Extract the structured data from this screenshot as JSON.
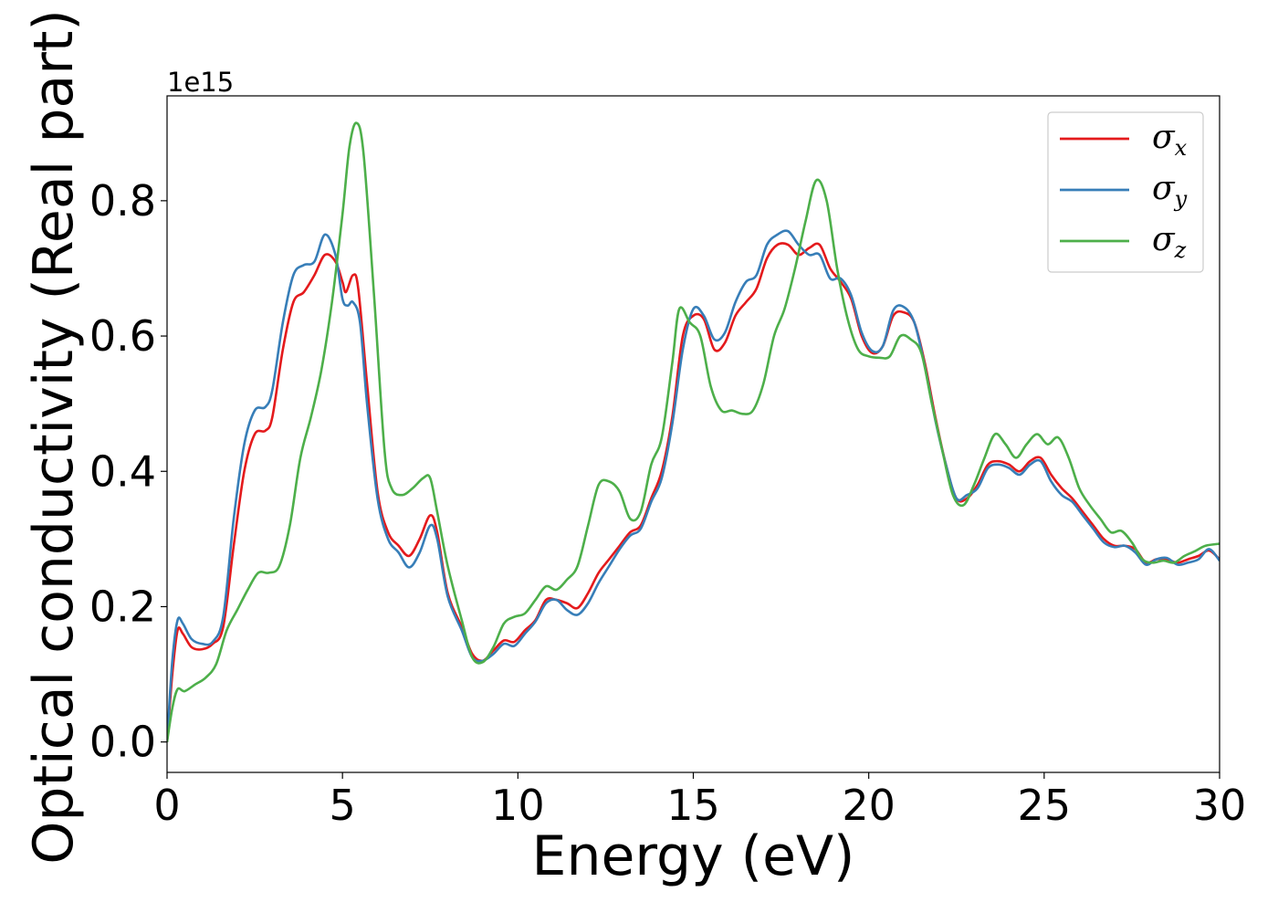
{
  "chart_data": {
    "type": "line",
    "title": "",
    "xlabel": "Energy (eV)",
    "ylabel": "Optical conductivity (Real part)",
    "y_offset_label": "1e15",
    "xlim": [
      0,
      30
    ],
    "ylim": [
      -0.045,
      0.955
    ],
    "xticks": [
      0,
      5,
      10,
      15,
      20,
      25,
      30
    ],
    "xtick_labels": [
      "0",
      "5",
      "10",
      "15",
      "20",
      "25",
      "30"
    ],
    "yticks": [
      0.0,
      0.2,
      0.4,
      0.6,
      0.8
    ],
    "ytick_labels": [
      "0.0",
      "0.2",
      "0.4",
      "0.6",
      "0.8"
    ],
    "grid": false,
    "legend": {
      "placement": "top-right"
    },
    "series": [
      {
        "name": "σx",
        "symbol": "σ",
        "subscript": "x",
        "color": "#e41a1c",
        "points": [
          [
            0,
            0.0
          ],
          [
            0.15,
            0.1
          ],
          [
            0.3,
            0.165
          ],
          [
            0.45,
            0.16
          ],
          [
            0.7,
            0.14
          ],
          [
            1.0,
            0.137
          ],
          [
            1.3,
            0.145
          ],
          [
            1.6,
            0.17
          ],
          [
            1.9,
            0.29
          ],
          [
            2.2,
            0.4
          ],
          [
            2.5,
            0.455
          ],
          [
            2.8,
            0.46
          ],
          [
            3.0,
            0.48
          ],
          [
            3.3,
            0.58
          ],
          [
            3.6,
            0.65
          ],
          [
            3.9,
            0.665
          ],
          [
            4.2,
            0.69
          ],
          [
            4.5,
            0.72
          ],
          [
            4.8,
            0.71
          ],
          [
            5.0,
            0.68
          ],
          [
            5.1,
            0.665
          ],
          [
            5.3,
            0.69
          ],
          [
            5.45,
            0.67
          ],
          [
            5.7,
            0.53
          ],
          [
            6.0,
            0.37
          ],
          [
            6.3,
            0.31
          ],
          [
            6.6,
            0.29
          ],
          [
            6.9,
            0.275
          ],
          [
            7.2,
            0.3
          ],
          [
            7.5,
            0.335
          ],
          [
            7.7,
            0.31
          ],
          [
            8.0,
            0.22
          ],
          [
            8.4,
            0.17
          ],
          [
            8.7,
            0.13
          ],
          [
            9.0,
            0.12
          ],
          [
            9.3,
            0.135
          ],
          [
            9.6,
            0.15
          ],
          [
            9.9,
            0.148
          ],
          [
            10.2,
            0.165
          ],
          [
            10.5,
            0.18
          ],
          [
            10.8,
            0.21
          ],
          [
            11.1,
            0.21
          ],
          [
            11.4,
            0.205
          ],
          [
            11.7,
            0.198
          ],
          [
            12.0,
            0.22
          ],
          [
            12.3,
            0.25
          ],
          [
            12.6,
            0.27
          ],
          [
            12.9,
            0.29
          ],
          [
            13.2,
            0.31
          ],
          [
            13.5,
            0.32
          ],
          [
            13.8,
            0.36
          ],
          [
            14.1,
            0.4
          ],
          [
            14.4,
            0.48
          ],
          [
            14.7,
            0.6
          ],
          [
            15.0,
            0.63
          ],
          [
            15.3,
            0.625
          ],
          [
            15.6,
            0.58
          ],
          [
            15.9,
            0.59
          ],
          [
            16.2,
            0.63
          ],
          [
            16.5,
            0.65
          ],
          [
            16.8,
            0.67
          ],
          [
            17.1,
            0.715
          ],
          [
            17.4,
            0.735
          ],
          [
            17.7,
            0.735
          ],
          [
            18.0,
            0.72
          ],
          [
            18.3,
            0.73
          ],
          [
            18.6,
            0.735
          ],
          [
            18.9,
            0.7
          ],
          [
            19.2,
            0.68
          ],
          [
            19.5,
            0.655
          ],
          [
            19.8,
            0.6
          ],
          [
            20.1,
            0.575
          ],
          [
            20.4,
            0.585
          ],
          [
            20.7,
            0.63
          ],
          [
            21.0,
            0.635
          ],
          [
            21.3,
            0.62
          ],
          [
            21.6,
            0.56
          ],
          [
            21.9,
            0.48
          ],
          [
            22.2,
            0.41
          ],
          [
            22.5,
            0.36
          ],
          [
            22.8,
            0.36
          ],
          [
            23.1,
            0.38
          ],
          [
            23.4,
            0.41
          ],
          [
            23.7,
            0.415
          ],
          [
            24.0,
            0.41
          ],
          [
            24.3,
            0.4
          ],
          [
            24.6,
            0.415
          ],
          [
            24.9,
            0.42
          ],
          [
            25.2,
            0.395
          ],
          [
            25.5,
            0.375
          ],
          [
            25.8,
            0.36
          ],
          [
            26.1,
            0.34
          ],
          [
            26.4,
            0.32
          ],
          [
            26.7,
            0.3
          ],
          [
            27.0,
            0.29
          ],
          [
            27.3,
            0.29
          ],
          [
            27.6,
            0.285
          ],
          [
            27.9,
            0.265
          ],
          [
            28.2,
            0.27
          ],
          [
            28.5,
            0.27
          ],
          [
            28.8,
            0.265
          ],
          [
            29.1,
            0.27
          ],
          [
            29.4,
            0.275
          ],
          [
            29.7,
            0.283
          ],
          [
            30.0,
            0.27
          ]
        ]
      },
      {
        "name": "σy",
        "symbol": "σ",
        "subscript": "y",
        "color": "#377eb8",
        "points": [
          [
            0,
            0.0
          ],
          [
            0.15,
            0.12
          ],
          [
            0.3,
            0.18
          ],
          [
            0.45,
            0.175
          ],
          [
            0.7,
            0.152
          ],
          [
            1.0,
            0.145
          ],
          [
            1.3,
            0.148
          ],
          [
            1.6,
            0.185
          ],
          [
            1.9,
            0.33
          ],
          [
            2.2,
            0.44
          ],
          [
            2.5,
            0.49
          ],
          [
            2.8,
            0.495
          ],
          [
            3.0,
            0.52
          ],
          [
            3.3,
            0.62
          ],
          [
            3.6,
            0.69
          ],
          [
            3.9,
            0.705
          ],
          [
            4.2,
            0.71
          ],
          [
            4.5,
            0.75
          ],
          [
            4.8,
            0.72
          ],
          [
            5.0,
            0.655
          ],
          [
            5.15,
            0.645
          ],
          [
            5.3,
            0.65
          ],
          [
            5.5,
            0.62
          ],
          [
            5.7,
            0.5
          ],
          [
            6.0,
            0.36
          ],
          [
            6.3,
            0.3
          ],
          [
            6.6,
            0.28
          ],
          [
            6.9,
            0.258
          ],
          [
            7.2,
            0.28
          ],
          [
            7.5,
            0.32
          ],
          [
            7.7,
            0.3
          ],
          [
            8.0,
            0.215
          ],
          [
            8.4,
            0.165
          ],
          [
            8.7,
            0.125
          ],
          [
            9.0,
            0.12
          ],
          [
            9.3,
            0.13
          ],
          [
            9.6,
            0.145
          ],
          [
            9.9,
            0.142
          ],
          [
            10.2,
            0.16
          ],
          [
            10.5,
            0.178
          ],
          [
            10.8,
            0.205
          ],
          [
            11.1,
            0.21
          ],
          [
            11.4,
            0.195
          ],
          [
            11.7,
            0.188
          ],
          [
            12.0,
            0.205
          ],
          [
            12.3,
            0.235
          ],
          [
            12.6,
            0.26
          ],
          [
            12.9,
            0.285
          ],
          [
            13.2,
            0.305
          ],
          [
            13.5,
            0.315
          ],
          [
            13.8,
            0.355
          ],
          [
            14.1,
            0.39
          ],
          [
            14.4,
            0.47
          ],
          [
            14.7,
            0.58
          ],
          [
            15.0,
            0.64
          ],
          [
            15.3,
            0.63
          ],
          [
            15.6,
            0.595
          ],
          [
            15.9,
            0.605
          ],
          [
            16.2,
            0.65
          ],
          [
            16.5,
            0.68
          ],
          [
            16.8,
            0.69
          ],
          [
            17.1,
            0.735
          ],
          [
            17.4,
            0.75
          ],
          [
            17.7,
            0.755
          ],
          [
            18.0,
            0.735
          ],
          [
            18.3,
            0.72
          ],
          [
            18.6,
            0.72
          ],
          [
            18.9,
            0.685
          ],
          [
            19.2,
            0.685
          ],
          [
            19.5,
            0.66
          ],
          [
            19.8,
            0.605
          ],
          [
            20.1,
            0.578
          ],
          [
            20.4,
            0.585
          ],
          [
            20.7,
            0.638
          ],
          [
            21.0,
            0.643
          ],
          [
            21.3,
            0.62
          ],
          [
            21.6,
            0.555
          ],
          [
            21.9,
            0.475
          ],
          [
            22.2,
            0.41
          ],
          [
            22.5,
            0.36
          ],
          [
            22.8,
            0.365
          ],
          [
            23.1,
            0.375
          ],
          [
            23.4,
            0.405
          ],
          [
            23.7,
            0.41
          ],
          [
            24.0,
            0.405
          ],
          [
            24.3,
            0.395
          ],
          [
            24.6,
            0.41
          ],
          [
            24.9,
            0.415
          ],
          [
            25.2,
            0.385
          ],
          [
            25.5,
            0.365
          ],
          [
            25.8,
            0.355
          ],
          [
            26.1,
            0.335
          ],
          [
            26.4,
            0.315
          ],
          [
            26.7,
            0.295
          ],
          [
            27.0,
            0.288
          ],
          [
            27.3,
            0.29
          ],
          [
            27.6,
            0.28
          ],
          [
            27.9,
            0.262
          ],
          [
            28.2,
            0.27
          ],
          [
            28.5,
            0.272
          ],
          [
            28.8,
            0.262
          ],
          [
            29.1,
            0.265
          ],
          [
            29.4,
            0.27
          ],
          [
            29.7,
            0.285
          ],
          [
            30.0,
            0.268
          ]
        ]
      },
      {
        "name": "σz",
        "symbol": "σ",
        "subscript": "z",
        "color": "#4daf4a",
        "points": [
          [
            0,
            0.0
          ],
          [
            0.15,
            0.05
          ],
          [
            0.3,
            0.078
          ],
          [
            0.5,
            0.075
          ],
          [
            0.8,
            0.085
          ],
          [
            1.1,
            0.095
          ],
          [
            1.4,
            0.115
          ],
          [
            1.7,
            0.165
          ],
          [
            2.0,
            0.195
          ],
          [
            2.3,
            0.225
          ],
          [
            2.6,
            0.25
          ],
          [
            2.9,
            0.25
          ],
          [
            3.2,
            0.26
          ],
          [
            3.5,
            0.32
          ],
          [
            3.8,
            0.42
          ],
          [
            4.1,
            0.48
          ],
          [
            4.4,
            0.55
          ],
          [
            4.7,
            0.65
          ],
          [
            5.0,
            0.78
          ],
          [
            5.2,
            0.88
          ],
          [
            5.4,
            0.915
          ],
          [
            5.6,
            0.87
          ],
          [
            5.9,
            0.66
          ],
          [
            6.2,
            0.43
          ],
          [
            6.4,
            0.375
          ],
          [
            6.7,
            0.365
          ],
          [
            7.0,
            0.375
          ],
          [
            7.3,
            0.39
          ],
          [
            7.5,
            0.39
          ],
          [
            7.7,
            0.34
          ],
          [
            8.0,
            0.26
          ],
          [
            8.4,
            0.18
          ],
          [
            8.7,
            0.125
          ],
          [
            9.0,
            0.118
          ],
          [
            9.3,
            0.14
          ],
          [
            9.6,
            0.175
          ],
          [
            9.9,
            0.185
          ],
          [
            10.2,
            0.19
          ],
          [
            10.5,
            0.21
          ],
          [
            10.8,
            0.23
          ],
          [
            11.1,
            0.225
          ],
          [
            11.4,
            0.24
          ],
          [
            11.7,
            0.26
          ],
          [
            12.0,
            0.32
          ],
          [
            12.3,
            0.38
          ],
          [
            12.6,
            0.385
          ],
          [
            12.9,
            0.37
          ],
          [
            13.2,
            0.33
          ],
          [
            13.5,
            0.34
          ],
          [
            13.8,
            0.41
          ],
          [
            14.1,
            0.45
          ],
          [
            14.4,
            0.56
          ],
          [
            14.6,
            0.64
          ],
          [
            14.9,
            0.62
          ],
          [
            15.2,
            0.6
          ],
          [
            15.5,
            0.525
          ],
          [
            15.8,
            0.49
          ],
          [
            16.1,
            0.49
          ],
          [
            16.4,
            0.485
          ],
          [
            16.7,
            0.49
          ],
          [
            17.0,
            0.53
          ],
          [
            17.3,
            0.6
          ],
          [
            17.6,
            0.64
          ],
          [
            17.9,
            0.7
          ],
          [
            18.2,
            0.77
          ],
          [
            18.5,
            0.83
          ],
          [
            18.8,
            0.8
          ],
          [
            19.1,
            0.7
          ],
          [
            19.4,
            0.625
          ],
          [
            19.7,
            0.58
          ],
          [
            20.0,
            0.57
          ],
          [
            20.3,
            0.568
          ],
          [
            20.6,
            0.57
          ],
          [
            20.9,
            0.6
          ],
          [
            21.2,
            0.595
          ],
          [
            21.5,
            0.575
          ],
          [
            21.8,
            0.5
          ],
          [
            22.1,
            0.43
          ],
          [
            22.4,
            0.365
          ],
          [
            22.7,
            0.35
          ],
          [
            23.0,
            0.38
          ],
          [
            23.3,
            0.42
          ],
          [
            23.6,
            0.455
          ],
          [
            23.9,
            0.44
          ],
          [
            24.2,
            0.42
          ],
          [
            24.5,
            0.44
          ],
          [
            24.8,
            0.455
          ],
          [
            25.1,
            0.44
          ],
          [
            25.4,
            0.45
          ],
          [
            25.7,
            0.42
          ],
          [
            26.0,
            0.375
          ],
          [
            26.3,
            0.35
          ],
          [
            26.6,
            0.33
          ],
          [
            26.9,
            0.31
          ],
          [
            27.2,
            0.312
          ],
          [
            27.5,
            0.295
          ],
          [
            27.8,
            0.27
          ],
          [
            28.1,
            0.265
          ],
          [
            28.4,
            0.268
          ],
          [
            28.7,
            0.265
          ],
          [
            29.0,
            0.275
          ],
          [
            29.3,
            0.282
          ],
          [
            29.6,
            0.29
          ],
          [
            30.0,
            0.293
          ]
        ]
      }
    ]
  }
}
